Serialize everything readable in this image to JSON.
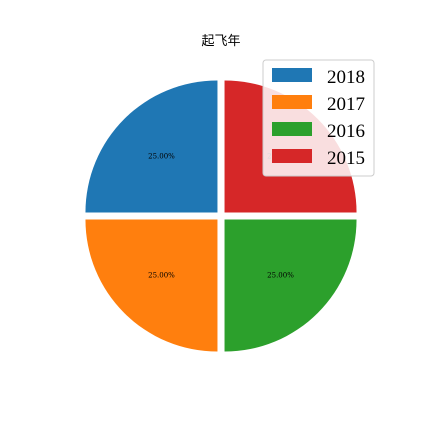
{
  "chart_data": {
    "type": "pie",
    "title": "起飞年",
    "categories": [
      "2018",
      "2017",
      "2016",
      "2015"
    ],
    "values": [
      25.0,
      25.0,
      25.0,
      25.0
    ],
    "value_labels": [
      "25.00%",
      "25.00%",
      "25.00%",
      "25.00%"
    ],
    "colors": [
      "#1f77b4",
      "#ff7f0e",
      "#2ca02c",
      "#d62728"
    ],
    "legend": {
      "entries": [
        "2018",
        "2017",
        "2016",
        "2015"
      ],
      "placement": "upper-right"
    },
    "explode": true,
    "start_angle_deg": 90,
    "counterclockwise": true
  }
}
